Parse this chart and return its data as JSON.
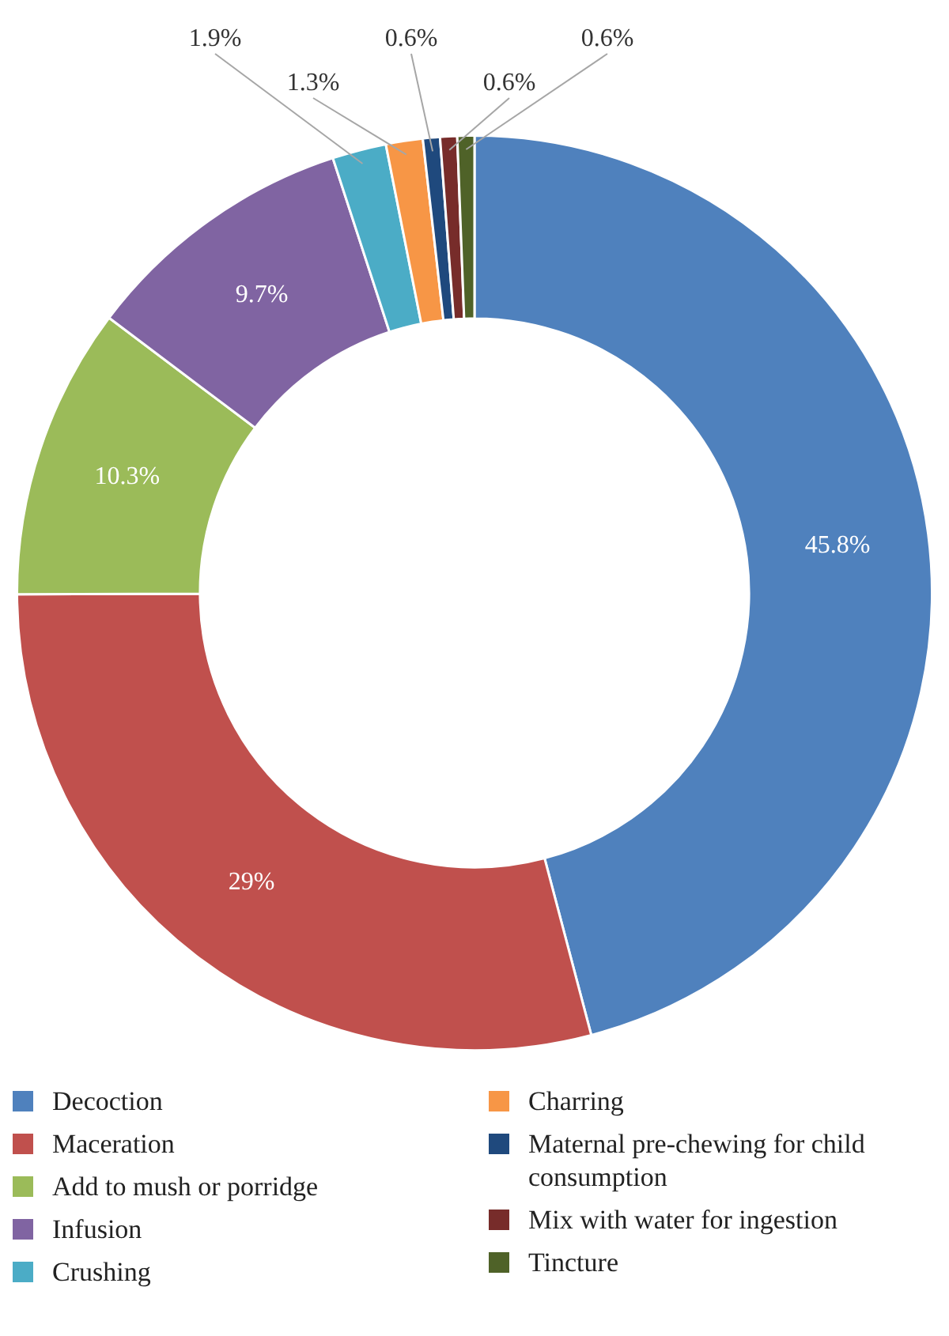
{
  "chart_data": {
    "type": "donut",
    "categories": [
      "Decoction",
      "Maceration",
      "Add to mush or porridge",
      "Infusion",
      "Crushing",
      "Charring",
      "Maternal pre-chewing for child consumption",
      "Mix with water for ingestion",
      "Tincture"
    ],
    "values": [
      45.8,
      29,
      10.3,
      9.7,
      1.9,
      1.3,
      0.6,
      0.6,
      0.6
    ],
    "colors": [
      "#4f81bd",
      "#c0504d",
      "#9bbb59",
      "#8064a2",
      "#4bacc6",
      "#f79646",
      "#1f497d",
      "#772c2a",
      "#4f6228"
    ],
    "value_labels": [
      "45.8%",
      "29%",
      "10.3%",
      "9.7%",
      "1.9%",
      "1.3%",
      "0.6%",
      "0.6%",
      "0.6%"
    ],
    "legend": "bottom"
  }
}
